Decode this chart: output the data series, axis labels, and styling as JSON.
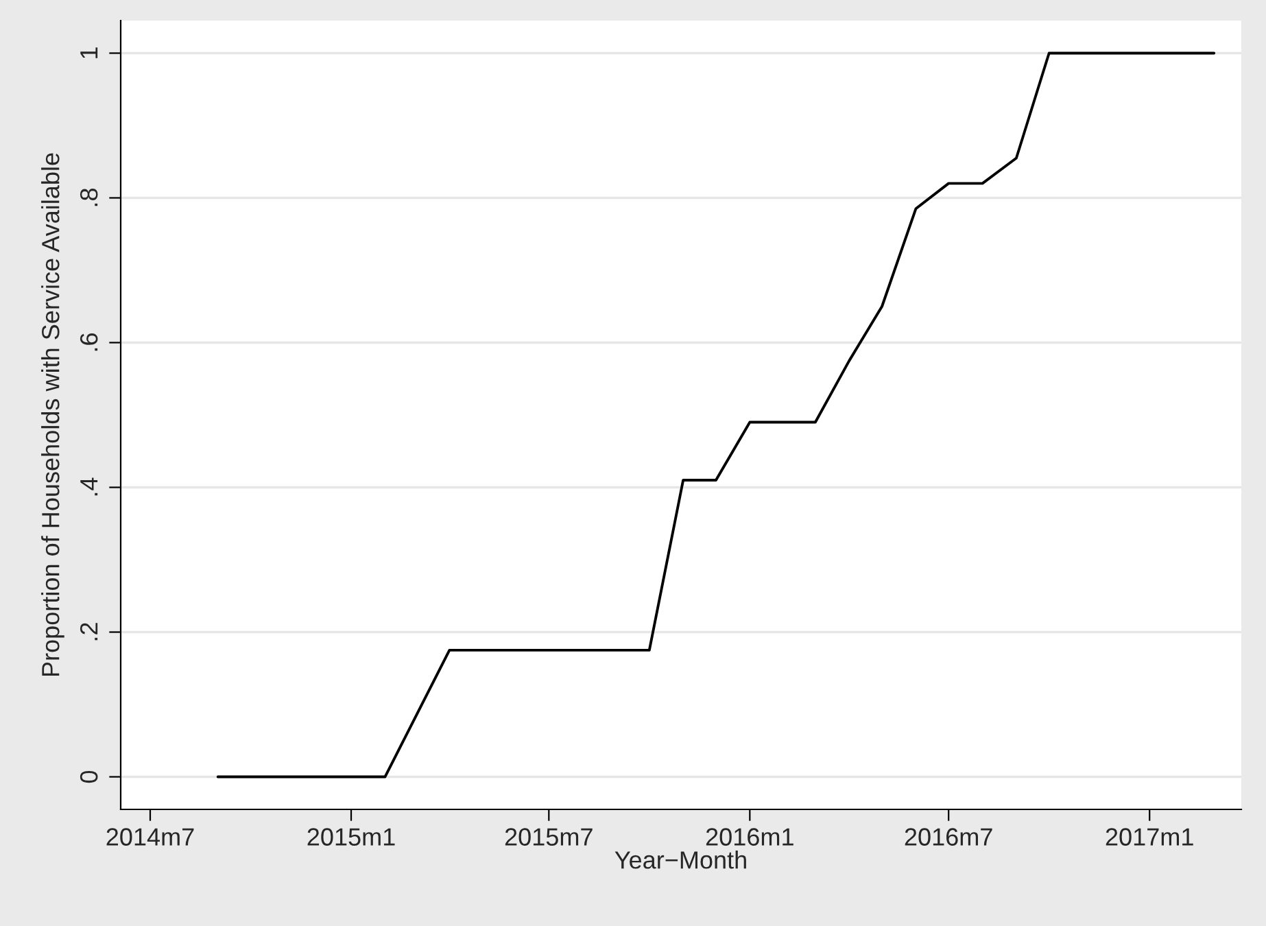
{
  "chart_data": {
    "type": "line",
    "xlabel": "Year−Month",
    "ylabel": "Proportion of Households with Service Available",
    "x": [
      "2014-09",
      "2015-02",
      "2015-04",
      "2015-10",
      "2015-11",
      "2015-12",
      "2016-01",
      "2016-03",
      "2016-04",
      "2016-05",
      "2016-06",
      "2016-07",
      "2016-08",
      "2016-09",
      "2016-10",
      "2017-03"
    ],
    "series": [
      {
        "color": "#000000",
        "values": [
          0,
          0,
          0.175,
          0.175,
          0.41,
          0.41,
          0.49,
          0.49,
          0.575,
          0.65,
          0.785,
          0.82,
          0.82,
          0.855,
          1,
          1
        ]
      }
    ],
    "xlim": [
      "2014-06-04",
      "2017-03-26"
    ],
    "xticks": [
      {
        "value": "2014-07",
        "label": "2014m7"
      },
      {
        "value": "2015-01",
        "label": "2015m1"
      },
      {
        "value": "2015-07",
        "label": "2015m7"
      },
      {
        "value": "2016-01",
        "label": "2016m1"
      },
      {
        "value": "2016-07",
        "label": "2016m7"
      },
      {
        "value": "2017-01",
        "label": "2017m1"
      }
    ],
    "ylim": [
      -0.045,
      1.045
    ],
    "yticks": [
      {
        "value": 0,
        "label": "0"
      },
      {
        "value": 0.2,
        "label": ".2"
      },
      {
        "value": 0.4,
        "label": ".4"
      },
      {
        "value": 0.6,
        "label": ".6"
      },
      {
        "value": 0.8,
        "label": ".8"
      },
      {
        "value": 1,
        "label": "1"
      }
    ],
    "grid": "y",
    "legend": false,
    "marker": "none",
    "line_style": "solid"
  }
}
